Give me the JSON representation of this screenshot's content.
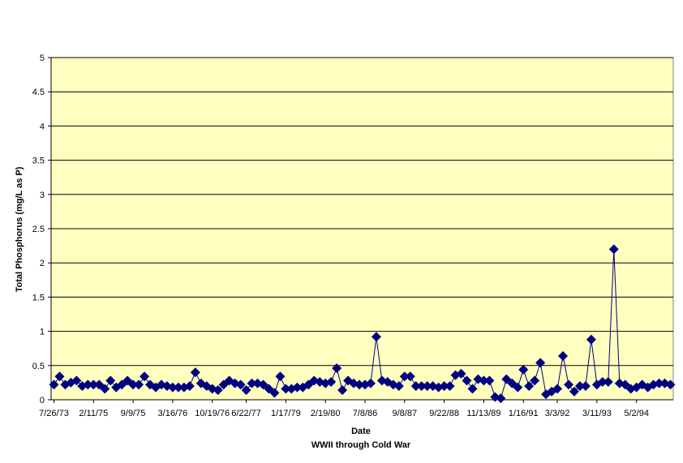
{
  "chart_data": {
    "type": "line",
    "title": "",
    "xlabel": "Date",
    "subtitle": "WWII through Cold War",
    "ylabel": "Total Phosphorus (mg/L as P)",
    "ylim": [
      0,
      5
    ],
    "yticks": [
      "0",
      "0.5",
      "1",
      "1.5",
      "2",
      "2.5",
      "3",
      "3.5",
      "4",
      "4.5",
      "5"
    ],
    "xtick_labels": [
      "7/26/73",
      "2/11/75",
      "9/9/75",
      "3/16/76",
      "10/19/76",
      "6/22/77",
      "1/17/79",
      "2/19/80",
      "7/8/86",
      "9/8/87",
      "9/22/88",
      "11/13/89",
      "1/16/91",
      "3/3/92",
      "3/11/93",
      "5/2/94"
    ],
    "grid": true,
    "plot_background": "#ffffc0",
    "series_color": "#000080",
    "marker": "diamond",
    "series": [
      {
        "values": [
          0.22,
          0.34,
          0.22,
          0.25,
          0.28,
          0.2,
          0.22,
          0.22,
          0.22,
          0.16,
          0.28,
          0.18,
          0.22,
          0.28,
          0.22,
          0.22,
          0.34,
          0.22,
          0.18,
          0.22,
          0.2,
          0.18,
          0.18,
          0.18,
          0.2,
          0.4,
          0.24,
          0.2,
          0.16,
          0.14,
          0.22,
          0.28,
          0.24,
          0.22,
          0.14,
          0.24,
          0.24,
          0.22,
          0.16,
          0.1,
          0.34,
          0.16,
          0.16,
          0.18,
          0.18,
          0.22,
          0.28,
          0.26,
          0.24,
          0.26,
          0.46,
          0.14,
          0.28,
          0.24,
          0.22,
          0.22,
          0.24,
          0.92,
          0.28,
          0.26,
          0.22,
          0.2,
          0.34,
          0.34,
          0.2,
          0.2,
          0.2,
          0.2,
          0.18,
          0.2,
          0.2,
          0.36,
          0.38,
          0.28,
          0.16,
          0.3,
          0.28,
          0.28,
          0.04,
          0.02,
          0.3,
          0.24,
          0.18,
          0.44,
          0.2,
          0.28,
          0.54,
          0.08,
          0.12,
          0.16,
          0.64,
          0.22,
          0.12,
          0.2,
          0.2,
          0.88,
          0.22,
          0.26,
          0.26,
          2.2,
          0.24,
          0.22,
          0.16,
          0.18,
          0.22,
          0.18,
          0.22,
          0.24,
          0.24,
          0.22
        ]
      }
    ]
  }
}
